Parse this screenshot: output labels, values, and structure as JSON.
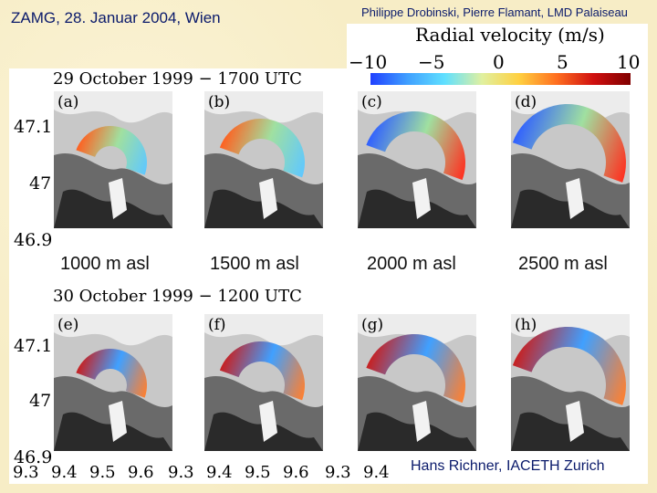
{
  "header": {
    "left": "ZAMG, 28. Januar 2004, Wien",
    "right": "Philippe Drobinski, Pierre Flamant, LMD Palaiseau"
  },
  "colorbar": {
    "title": "Radial velocity (m/s)",
    "ticks": [
      "−10",
      "−5",
      "0",
      "5",
      "10"
    ]
  },
  "rows": [
    {
      "time": "29 October 1999 − 1700 UTC",
      "panels": [
        "(a)",
        "(b)",
        "(c)",
        "(d)"
      ]
    },
    {
      "time": "30 October 1999 − 1200 UTC",
      "panels": [
        "(e)",
        "(f)",
        "(g)",
        "(h)"
      ]
    }
  ],
  "altitudes": [
    "1000 m asl",
    "1500 m asl",
    "2000 m asl",
    "2500 m asl"
  ],
  "yticks": [
    "47.1",
    "47",
    "46.9"
  ],
  "xticks": [
    "9.3",
    "9.4",
    "9.5",
    "9.6"
  ],
  "footer": "Hans Richner, IACETH Zurich"
}
